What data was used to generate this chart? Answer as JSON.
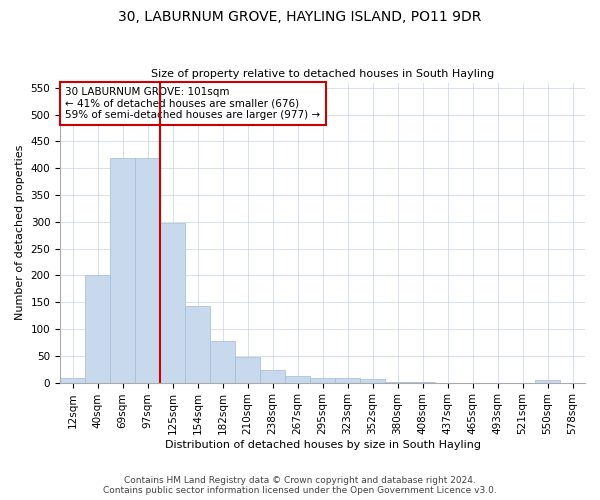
{
  "title": "30, LABURNUM GROVE, HAYLING ISLAND, PO11 9DR",
  "subtitle": "Size of property relative to detached houses in South Hayling",
  "xlabel": "Distribution of detached houses by size in South Hayling",
  "ylabel": "Number of detached properties",
  "footnote1": "Contains HM Land Registry data © Crown copyright and database right 2024.",
  "footnote2": "Contains public sector information licensed under the Open Government Licence v3.0.",
  "annotation_line1": "30 LABURNUM GROVE: 101sqm",
  "annotation_line2": "← 41% of detached houses are smaller (676)",
  "annotation_line3": "59% of semi-detached houses are larger (977) →",
  "bar_color": "#c9d9ed",
  "bar_edge_color": "#a0bcd8",
  "vline_color": "#cc0000",
  "annotation_box_edgecolor": "#cc0000",
  "categories": [
    "12sqm",
    "40sqm",
    "69sqm",
    "97sqm",
    "125sqm",
    "154sqm",
    "182sqm",
    "210sqm",
    "238sqm",
    "267sqm",
    "295sqm",
    "323sqm",
    "352sqm",
    "380sqm",
    "408sqm",
    "437sqm",
    "465sqm",
    "493sqm",
    "521sqm",
    "550sqm",
    "578sqm"
  ],
  "bar_heights": [
    8,
    200,
    420,
    420,
    298,
    143,
    77,
    48,
    24,
    12,
    8,
    8,
    7,
    2,
    2,
    0,
    0,
    0,
    0,
    4,
    0
  ],
  "ylim": [
    0,
    560
  ],
  "yticks": [
    0,
    50,
    100,
    150,
    200,
    250,
    300,
    350,
    400,
    450,
    500,
    550
  ],
  "vline_x": 3.5,
  "bar_width": 1.0,
  "background_color": "#ffffff",
  "grid_color": "#c8d4e4",
  "title_fontsize": 10,
  "subtitle_fontsize": 8,
  "ylabel_fontsize": 8,
  "xlabel_fontsize": 8,
  "tick_fontsize": 7.5,
  "annotation_fontsize": 7.5,
  "footnote_fontsize": 6.5
}
